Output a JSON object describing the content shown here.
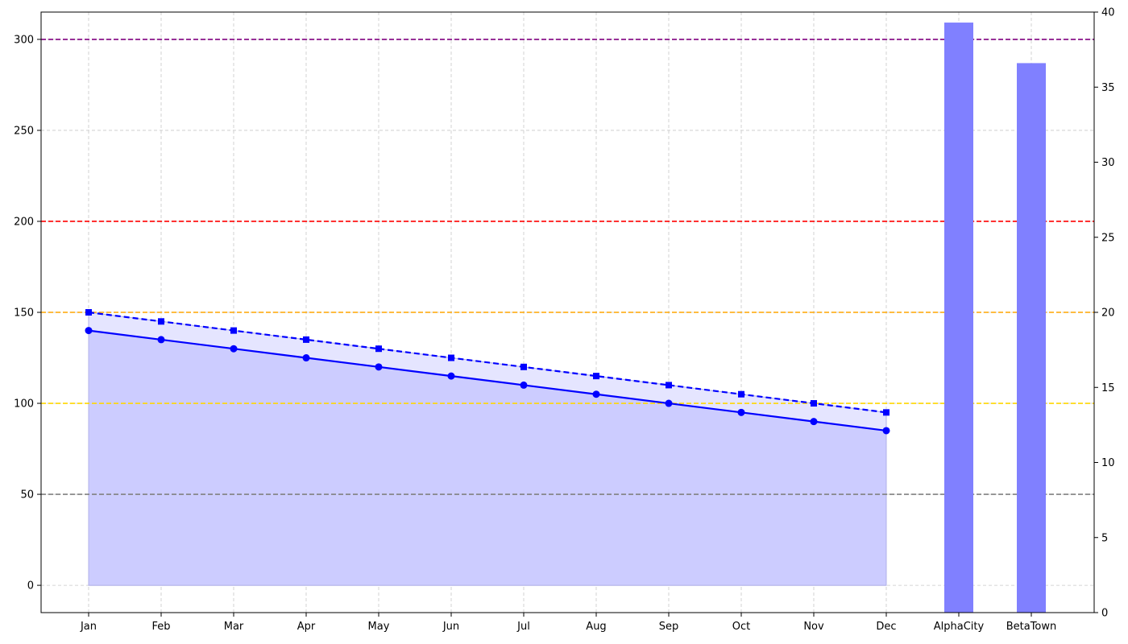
{
  "chart_data": {
    "type": "line",
    "title": "",
    "xlabel": "",
    "ylabel": "",
    "categories": [
      "Jan",
      "Feb",
      "Mar",
      "Apr",
      "May",
      "Jun",
      "Jul",
      "Aug",
      "Sep",
      "Oct",
      "Nov",
      "Dec",
      "AlphaCity",
      "BetaTown"
    ],
    "ylim": [
      -15,
      315
    ],
    "y2lim": [
      0,
      40
    ],
    "yticks": [
      0,
      50,
      100,
      150,
      200,
      250,
      300
    ],
    "y2ticks": [
      0,
      5,
      10,
      15,
      20,
      25,
      30,
      35,
      40
    ],
    "grid": true,
    "series": [
      {
        "style": "solid",
        "marker": "circle",
        "color": "#0000ff",
        "fill": "#ccccff",
        "axis": "left",
        "x": [
          "Jan",
          "Feb",
          "Mar",
          "Apr",
          "May",
          "Jun",
          "Jul",
          "Aug",
          "Sep",
          "Oct",
          "Nov",
          "Dec"
        ],
        "values": [
          140,
          135,
          130,
          125,
          120,
          115,
          110,
          105,
          100,
          95,
          90,
          85
        ]
      },
      {
        "style": "dashed",
        "marker": "square",
        "color": "#0000ff",
        "fill": "#e5e5ff",
        "axis": "left",
        "x": [
          "Jan",
          "Feb",
          "Mar",
          "Apr",
          "May",
          "Jun",
          "Jul",
          "Aug",
          "Sep",
          "Oct",
          "Nov",
          "Dec"
        ],
        "values": [
          150,
          145,
          140,
          135,
          130,
          125,
          120,
          115,
          110,
          105,
          100,
          95
        ]
      },
      {
        "type": "bar",
        "color": "#8080ff",
        "axis": "right",
        "x": [
          "AlphaCity",
          "BetaTown"
        ],
        "values": [
          39.3,
          36.6
        ]
      }
    ],
    "reference_lines": [
      {
        "y": 50,
        "color": "#808080"
      },
      {
        "y": 100,
        "color": "#ffd700"
      },
      {
        "y": 150,
        "color": "#ffa500"
      },
      {
        "y": 200,
        "color": "#ff0000"
      },
      {
        "y": 300,
        "color": "#800080"
      }
    ]
  }
}
